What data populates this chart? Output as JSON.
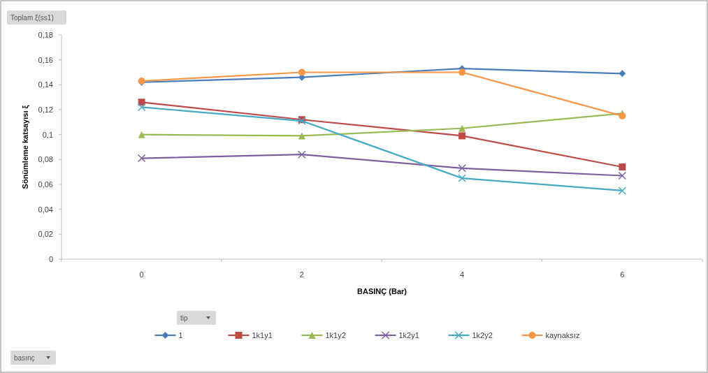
{
  "chart_data": {
    "type": "line",
    "xlabel": "BASINÇ (Bar)",
    "ylabel": "Sönümleme katsayısı ξ",
    "categories": [
      "0",
      "2",
      "4",
      "6"
    ],
    "ylim": [
      0,
      0.18
    ],
    "yticks": [
      {
        "value": 0,
        "label": "0"
      },
      {
        "value": 0.02,
        "label": "0,02"
      },
      {
        "value": 0.04,
        "label": "0,04"
      },
      {
        "value": 0.06,
        "label": "0,06"
      },
      {
        "value": 0.08,
        "label": "0,08"
      },
      {
        "value": 0.1,
        "label": "0,1"
      },
      {
        "value": 0.12,
        "label": "0,12"
      },
      {
        "value": 0.14,
        "label": "0,14"
      },
      {
        "value": 0.16,
        "label": "0,16"
      },
      {
        "value": 0.18,
        "label": "0,18"
      }
    ],
    "grid": false,
    "legend": "bottom",
    "line_style": "solid",
    "series": [
      {
        "name": "1",
        "color": "#4a7ebb",
        "marker": "diamond",
        "values": [
          0.142,
          0.146,
          0.153,
          0.149
        ]
      },
      {
        "name": "1k1y1",
        "color": "#be4b48",
        "marker": "square",
        "values": [
          0.126,
          0.112,
          0.099,
          0.074
        ]
      },
      {
        "name": "1k1y2",
        "color": "#98b954",
        "marker": "triangle",
        "values": [
          0.1,
          0.099,
          0.105,
          0.117
        ]
      },
      {
        "name": "1k2y1",
        "color": "#7d60a0",
        "marker": "cross",
        "values": [
          0.081,
          0.084,
          0.073,
          0.067
        ]
      },
      {
        "name": "1k2y2",
        "color": "#46aac5",
        "marker": "cross",
        "values": [
          0.122,
          0.111,
          0.065,
          0.055
        ]
      },
      {
        "name": "kaynaksız",
        "color": "#f79646",
        "marker": "circle",
        "values": [
          0.143,
          0.15,
          0.15,
          0.115
        ]
      }
    ],
    "annotations": [
      "Toplam ξ(ss1)",
      "tip",
      "basınç"
    ]
  }
}
